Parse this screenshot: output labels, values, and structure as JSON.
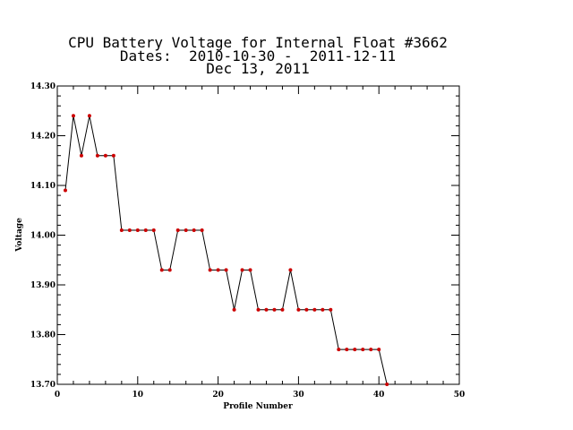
{
  "chart_data": {
    "type": "line",
    "title_lines": [
      "CPU Battery Voltage for Internal Float #3662",
      "Dates:  2010-10-30 -  2011-12-11",
      "Dec 13, 2011"
    ],
    "xlabel": "Profile Number",
    "ylabel": "Voltage",
    "xlim": [
      0,
      50
    ],
    "ylim": [
      13.7,
      14.3
    ],
    "x_ticks": [
      0,
      10,
      20,
      30,
      40,
      50
    ],
    "x_tick_labels": [
      "0",
      "10",
      "20",
      "30",
      "40",
      "50"
    ],
    "y_ticks": [
      13.7,
      13.8,
      13.9,
      14.0,
      14.1,
      14.2,
      14.3
    ],
    "y_tick_labels": [
      "13.70",
      "13.80",
      "13.90",
      "14.00",
      "14.10",
      "14.20",
      "14.30"
    ],
    "grid": false,
    "line_color": "#000000",
    "marker_color": "#cc0000",
    "x": [
      1,
      2,
      3,
      4,
      5,
      6,
      7,
      8,
      9,
      10,
      11,
      12,
      13,
      14,
      15,
      16,
      17,
      18,
      19,
      20,
      21,
      22,
      23,
      24,
      25,
      26,
      27,
      28,
      29,
      30,
      31,
      32,
      33,
      34,
      35,
      36,
      37,
      38,
      39,
      40,
      41
    ],
    "y": [
      14.09,
      14.24,
      14.16,
      14.24,
      14.16,
      14.16,
      14.16,
      14.01,
      14.01,
      14.01,
      14.01,
      14.01,
      13.93,
      13.93,
      14.01,
      14.01,
      14.01,
      14.01,
      13.93,
      13.93,
      13.93,
      13.85,
      13.93,
      13.93,
      13.85,
      13.85,
      13.85,
      13.85,
      13.93,
      13.85,
      13.85,
      13.85,
      13.85,
      13.85,
      13.77,
      13.77,
      13.77,
      13.77,
      13.77,
      13.77,
      13.7
    ]
  }
}
